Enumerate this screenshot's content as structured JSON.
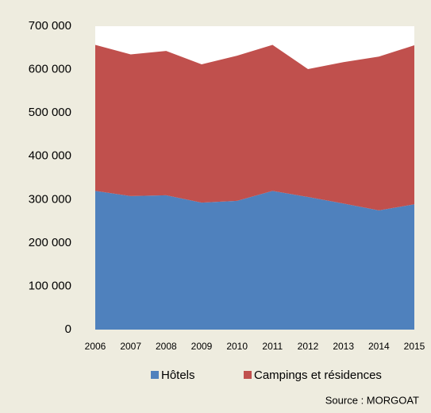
{
  "chart_data": {
    "type": "stacked_area",
    "categories": [
      "2006",
      "2007",
      "2008",
      "2009",
      "2010",
      "2011",
      "2012",
      "2013",
      "2014",
      "2015"
    ],
    "series": [
      {
        "name": "Hôtels",
        "color": "#4f81bd",
        "values": [
          320000,
          308000,
          310000,
          293000,
          297000,
          320000,
          306000,
          291000,
          275000,
          289000
        ]
      },
      {
        "name": "Campings et résidences",
        "color": "#c0504d",
        "values": [
          337000,
          327000,
          333000,
          319000,
          335000,
          337000,
          295000,
          326000,
          355000,
          367000
        ]
      }
    ],
    "ylim": [
      0,
      700000
    ],
    "yticks": [
      0,
      {
        "value": 100000,
        "label": "100 000"
      },
      {
        "value": 200000,
        "label": "200 000"
      },
      {
        "value": 300000,
        "label": "300 000"
      },
      {
        "value": 400000,
        "label": "400 000"
      },
      {
        "value": 500000,
        "label": "500 000"
      },
      {
        "value": 600000,
        "label": "600 000"
      },
      {
        "value": 700000,
        "label": "700 000"
      }
    ],
    "legend": "bottom",
    "source": "Source : MORGOAT"
  }
}
